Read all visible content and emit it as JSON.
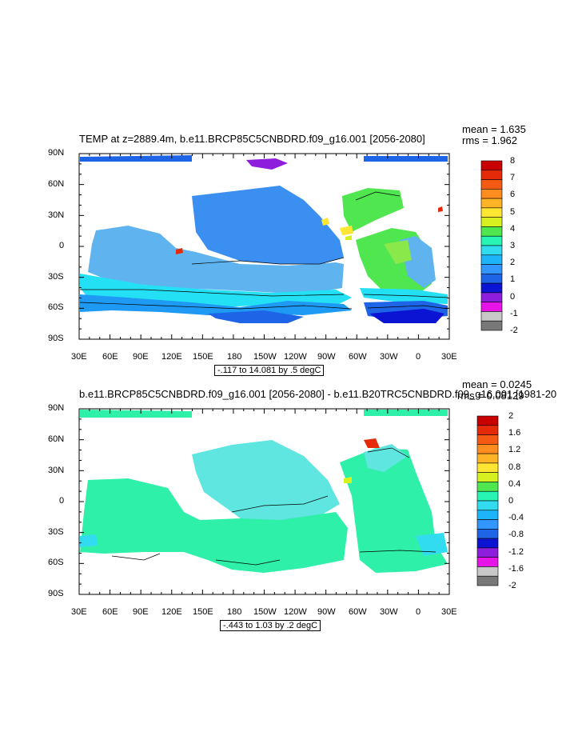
{
  "panels": [
    {
      "title": "TEMP at z=2889.4m, b.e11.BRCP85C5CNBDRD.f09_g16.001 [2056-2080]",
      "stats": {
        "mean": "mean = 1.635",
        "rms": "rms = 1.962"
      },
      "lat_labels": [
        "90N",
        "60N",
        "30N",
        "0",
        "30S",
        "60S",
        "90S"
      ],
      "lon_labels": [
        "30E",
        "60E",
        "90E",
        "120E",
        "150E",
        "180",
        "150W",
        "120W",
        "90W",
        "60W",
        "30W",
        "0",
        "30E"
      ],
      "range_note": "-.117 to 14.081 by .5 degC",
      "colorbar": {
        "labels": [
          "8",
          "7",
          "6",
          "5",
          "4",
          "3",
          "2",
          "1",
          "0",
          "-1",
          "-2"
        ],
        "colors": [
          "#c80000",
          "#e52a0a",
          "#f55a14",
          "#ff8c1e",
          "#ffb428",
          "#ffe632",
          "#d6f020",
          "#50e650",
          "#28f5b4",
          "#32dcf0",
          "#1eb4fa",
          "#3296ff",
          "#1e64e6",
          "#0a14d2",
          "#8c1edc",
          "#e614e6",
          "#c8c8c8",
          "#787878"
        ]
      }
    },
    {
      "title": "b.e11.BRCP85C5CNBDRD.f09_g16.001 [2056-2080] - b.e11.B20TRC5CNBDRD.f09_g16.001 [1981-20",
      "stats": {
        "mean": "mean = 0.0245",
        "rms": "rms = 0.08129"
      },
      "lat_labels": [
        "90N",
        "60N",
        "30N",
        "0",
        "30S",
        "60S",
        "90S"
      ],
      "lon_labels": [
        "30E",
        "60E",
        "90E",
        "120E",
        "150E",
        "180",
        "150W",
        "120W",
        "90W",
        "60W",
        "30W",
        "0",
        "30E"
      ],
      "range_note": "-.443 to 1.03 by .2 degC",
      "colorbar": {
        "labels": [
          "2",
          "1.6",
          "1.2",
          "0.8",
          "0.4",
          "0",
          "-0.4",
          "-0.8",
          "-1.2",
          "-1.6",
          "-2"
        ],
        "colors": [
          "#c80000",
          "#e52a0a",
          "#f55a14",
          "#ff8c1e",
          "#ffb428",
          "#ffe632",
          "#d6f020",
          "#50e650",
          "#28f5b4",
          "#32dcf0",
          "#1eb4fa",
          "#3296ff",
          "#1e64e6",
          "#0a14d2",
          "#8c1edc",
          "#e614e6",
          "#c8c8c8",
          "#787878"
        ]
      }
    }
  ]
}
